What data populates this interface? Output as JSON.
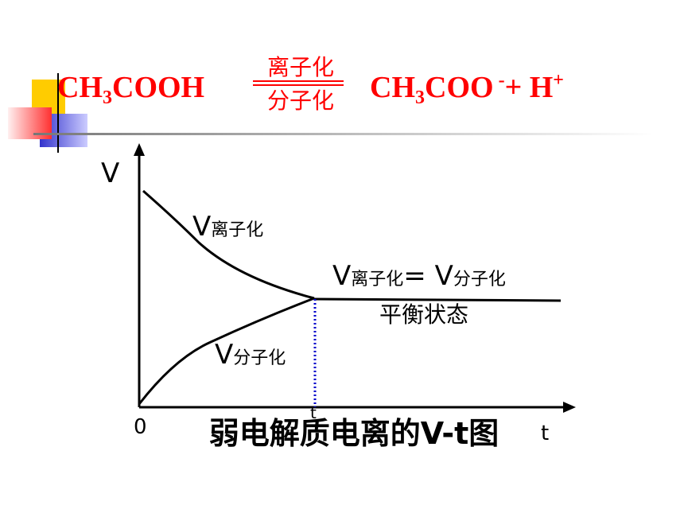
{
  "equation": {
    "reactant": {
      "base": "CH",
      "sub": "3",
      "rest": "COOH"
    },
    "forward": "离子化",
    "reverse": "分子化",
    "product": {
      "base": "CH",
      "sub": "3",
      "rest": "COO",
      "charge": "-",
      "plus": "+ H",
      "h_charge": "+"
    }
  },
  "graph": {
    "y_axis_label": "V",
    "x_axis_label": "t",
    "origin_label": "0",
    "t1_label": "t",
    "ionization_curve": {
      "symbol": "V",
      "subscript": "离子化"
    },
    "molecular_curve": {
      "symbol": "V",
      "subscript": "分子化"
    },
    "equilibrium": {
      "left_symbol": "V",
      "left_subscript": "离子化",
      "equals": "= V",
      "right_subscript": "分子化",
      "state": "平衡状态"
    }
  },
  "caption": "弱电解质电离的V-t图"
}
